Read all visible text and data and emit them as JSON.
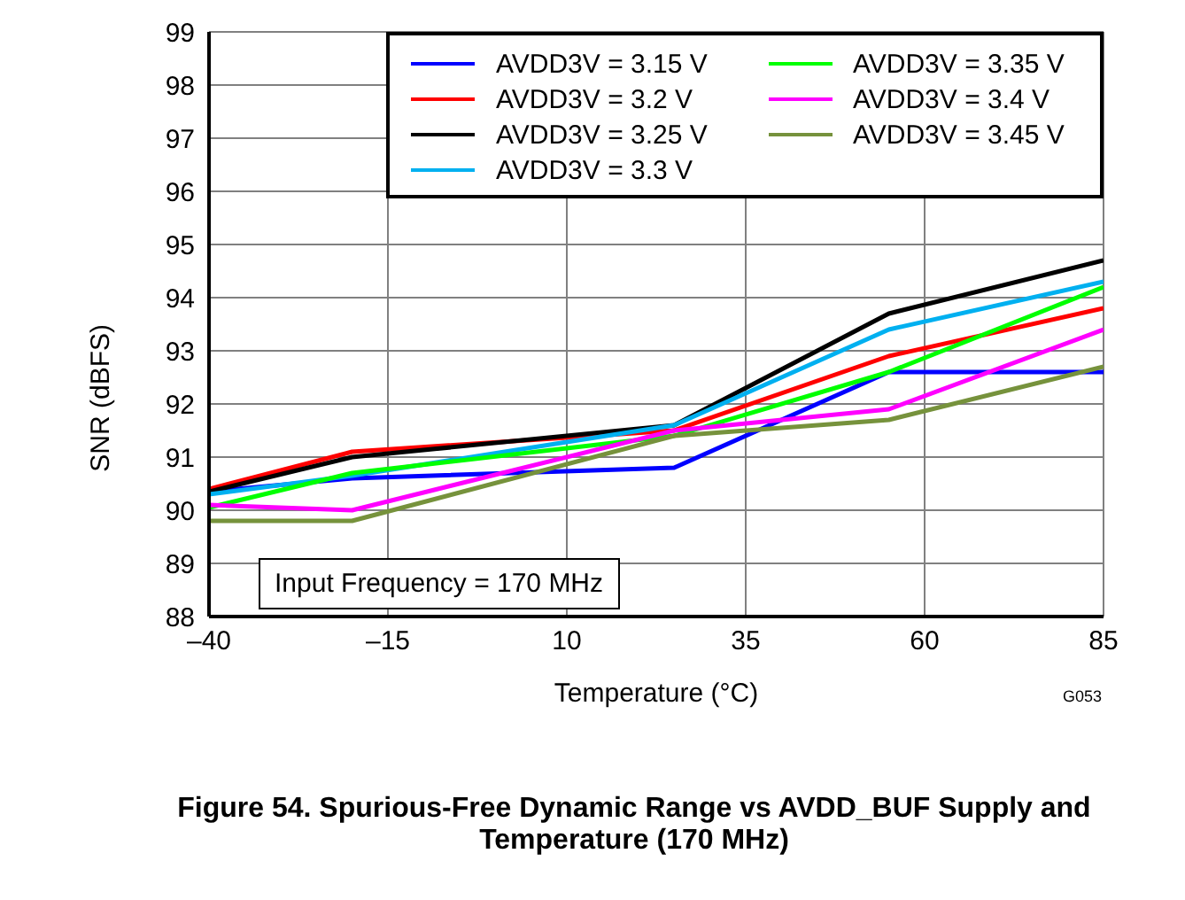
{
  "chart_data": {
    "type": "line",
    "title": "Figure 54. Spurious-Free Dynamic Range vs AVDD_BUF Supply and Temperature (170 MHz)",
    "xlabel": "Temperature (°C)",
    "ylabel": "SNR (dBFS)",
    "x": [
      -40,
      -20,
      25,
      55,
      85
    ],
    "series": [
      {
        "name": "AVDD3V = 3.15 V",
        "color": "#0000ff",
        "values": [
          90.35,
          90.6,
          90.8,
          92.6,
          92.6
        ]
      },
      {
        "name": "AVDD3V = 3.2 V",
        "color": "#ff0000",
        "values": [
          90.4,
          91.1,
          91.5,
          92.9,
          93.8
        ]
      },
      {
        "name": "AVDD3V = 3.25 V",
        "color": "#000000",
        "values": [
          90.35,
          91.0,
          91.6,
          93.7,
          94.7
        ]
      },
      {
        "name": "AVDD3V = 3.3 V",
        "color": "#00b0f0",
        "values": [
          90.3,
          90.65,
          91.6,
          93.4,
          94.3
        ]
      },
      {
        "name": "AVDD3V = 3.35 V",
        "color": "#00ff00",
        "values": [
          90.05,
          90.7,
          91.4,
          92.6,
          94.2
        ]
      },
      {
        "name": "AVDD3V = 3.4 V",
        "color": "#ff00ff",
        "values": [
          90.1,
          90.0,
          91.5,
          91.9,
          93.4
        ]
      },
      {
        "name": "AVDD3V = 3.45 V",
        "color": "#76923c",
        "values": [
          89.8,
          89.8,
          91.4,
          91.7,
          92.7
        ]
      }
    ],
    "xlim": [
      -40,
      85
    ],
    "xticks": [
      {
        "value": -40,
        "label": "–40"
      },
      {
        "value": -15,
        "label": "–15"
      },
      10,
      35,
      60,
      85
    ],
    "ylim": [
      88,
      99
    ],
    "yticks": [
      88,
      89,
      90,
      91,
      92,
      93,
      94,
      95,
      96,
      97,
      98,
      99
    ],
    "grid": true,
    "legend": "top right",
    "marker": "none",
    "line_style": "solid",
    "annotations": [
      "Input Frequency = 170 MHz",
      "G053"
    ]
  }
}
